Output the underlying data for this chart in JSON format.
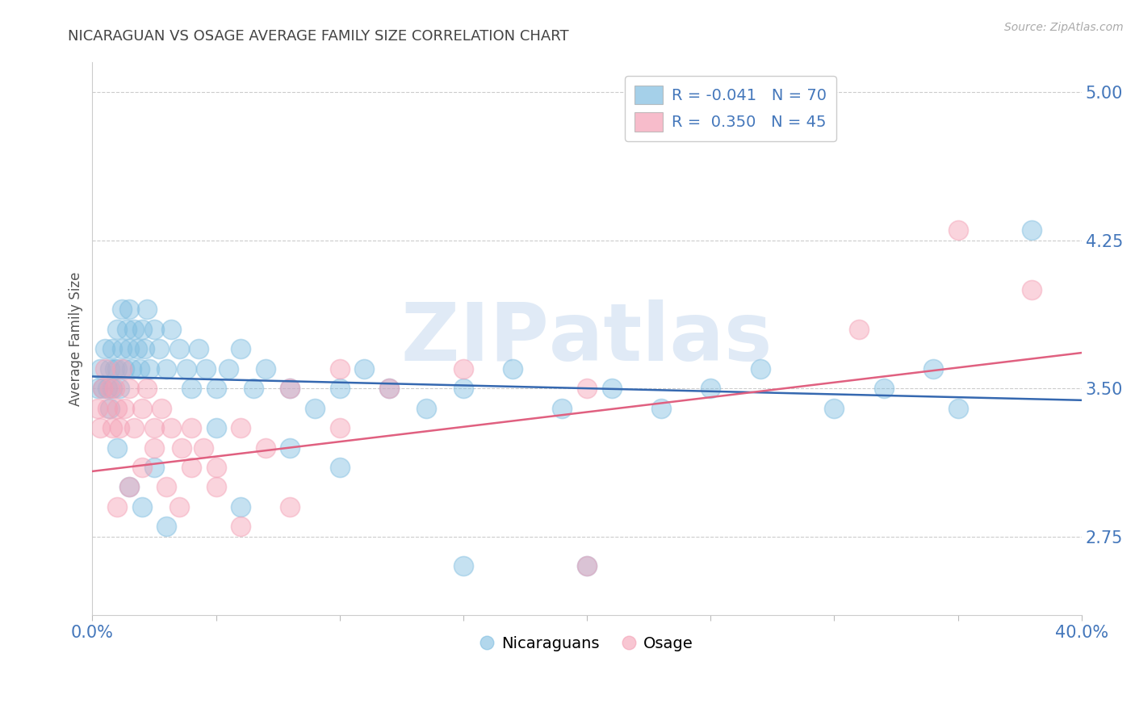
{
  "title": "NICARAGUAN VS OSAGE AVERAGE FAMILY SIZE CORRELATION CHART",
  "source_text": "Source: ZipAtlas.com",
  "ylabel": "Average Family Size",
  "xlim": [
    0.0,
    0.4
  ],
  "ylim": [
    2.35,
    5.15
  ],
  "yticks": [
    2.75,
    3.5,
    4.25,
    5.0
  ],
  "xticks": [
    0.0,
    0.05,
    0.1,
    0.15,
    0.2,
    0.25,
    0.3,
    0.35,
    0.4
  ],
  "blue_color": "#7fbde0",
  "pink_color": "#f4a0b5",
  "blue_line_color": "#3568b0",
  "pink_line_color": "#e06080",
  "blue_R": -0.041,
  "blue_N": 70,
  "pink_R": 0.35,
  "pink_N": 45,
  "legend_blue_label": "Nicaraguans",
  "legend_pink_label": "Osage",
  "title_color": "#444444",
  "axis_label_color": "#4477bb",
  "grid_color": "#cccccc",
  "blue_trend_y0": 3.56,
  "blue_trend_y1": 3.44,
  "pink_trend_y0": 3.08,
  "pink_trend_y1": 3.68,
  "blue_scatter_x": [
    0.002,
    0.003,
    0.004,
    0.005,
    0.006,
    0.007,
    0.007,
    0.008,
    0.008,
    0.009,
    0.01,
    0.01,
    0.011,
    0.012,
    0.012,
    0.013,
    0.014,
    0.015,
    0.015,
    0.016,
    0.017,
    0.018,
    0.019,
    0.02,
    0.021,
    0.022,
    0.023,
    0.025,
    0.027,
    0.03,
    0.032,
    0.035,
    0.038,
    0.04,
    0.043,
    0.046,
    0.05,
    0.055,
    0.06,
    0.065,
    0.07,
    0.08,
    0.09,
    0.1,
    0.11,
    0.12,
    0.135,
    0.15,
    0.17,
    0.19,
    0.21,
    0.23,
    0.25,
    0.27,
    0.3,
    0.32,
    0.34,
    0.01,
    0.015,
    0.02,
    0.025,
    0.03,
    0.05,
    0.06,
    0.08,
    0.1,
    0.15,
    0.2,
    0.35,
    0.38
  ],
  "blue_scatter_y": [
    3.5,
    3.6,
    3.5,
    3.7,
    3.5,
    3.6,
    3.4,
    3.7,
    3.5,
    3.6,
    3.8,
    3.6,
    3.5,
    3.9,
    3.7,
    3.6,
    3.8,
    3.7,
    3.9,
    3.6,
    3.8,
    3.7,
    3.6,
    3.8,
    3.7,
    3.9,
    3.6,
    3.8,
    3.7,
    3.6,
    3.8,
    3.7,
    3.6,
    3.5,
    3.7,
    3.6,
    3.5,
    3.6,
    3.7,
    3.5,
    3.6,
    3.5,
    3.4,
    3.5,
    3.6,
    3.5,
    3.4,
    3.5,
    3.6,
    3.4,
    3.5,
    3.4,
    3.5,
    3.6,
    3.4,
    3.5,
    3.6,
    3.2,
    3.0,
    2.9,
    3.1,
    2.8,
    3.3,
    2.9,
    3.2,
    3.1,
    2.6,
    2.6,
    3.4,
    4.3
  ],
  "pink_scatter_x": [
    0.002,
    0.003,
    0.004,
    0.005,
    0.006,
    0.007,
    0.008,
    0.009,
    0.01,
    0.011,
    0.012,
    0.013,
    0.015,
    0.017,
    0.02,
    0.022,
    0.025,
    0.028,
    0.032,
    0.036,
    0.04,
    0.045,
    0.05,
    0.06,
    0.07,
    0.08,
    0.1,
    0.12,
    0.15,
    0.2,
    0.01,
    0.015,
    0.02,
    0.025,
    0.03,
    0.035,
    0.04,
    0.05,
    0.06,
    0.08,
    0.1,
    0.2,
    0.31,
    0.35,
    0.38
  ],
  "pink_scatter_y": [
    3.4,
    3.3,
    3.5,
    3.6,
    3.4,
    3.5,
    3.3,
    3.5,
    3.4,
    3.3,
    3.6,
    3.4,
    3.5,
    3.3,
    3.4,
    3.5,
    3.3,
    3.4,
    3.3,
    3.2,
    3.3,
    3.2,
    3.1,
    3.3,
    3.2,
    3.5,
    3.3,
    3.5,
    3.6,
    3.5,
    2.9,
    3.0,
    3.1,
    3.2,
    3.0,
    2.9,
    3.1,
    3.0,
    2.8,
    2.9,
    3.6,
    2.6,
    3.8,
    4.3,
    4.0
  ]
}
